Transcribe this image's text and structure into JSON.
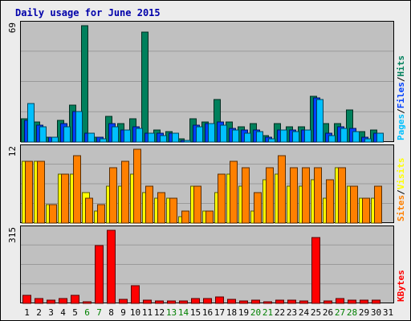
{
  "title": "Daily usage for June 2015",
  "colors": {
    "page_bg": "#ececec",
    "plot_bg": "#c0c0c0",
    "title": "#0000aa",
    "hits": "#00805c",
    "files": "#0040ff",
    "pages": "#00c0ff",
    "visits": "#ffff00",
    "sites": "#ff8000",
    "kbytes": "#ff0000",
    "weekend_label": "#008000",
    "weekday_label": "#000000"
  },
  "chart_data": [
    {
      "type": "bar",
      "panel": "hits-files-pages",
      "y_max_label": "69",
      "ylim": [
        0,
        69
      ],
      "grid": true,
      "legend": {
        "position": "right",
        "entries": [
          {
            "text": "Pages",
            "color": "#00c0ff"
          },
          {
            "text": "Files",
            "color": "#0040ff"
          },
          {
            "text": "Hits",
            "color": "#00805c"
          }
        ],
        "separator": "/"
      },
      "categories": [
        "1",
        "2",
        "3",
        "4",
        "5",
        "6",
        "7",
        "8",
        "9",
        "10",
        "11",
        "12",
        "13",
        "14",
        "15",
        "16",
        "17",
        "18",
        "19",
        "20",
        "21",
        "22",
        "23",
        "24",
        "25",
        "26",
        "27",
        "28",
        "29",
        "30"
      ],
      "series": [
        {
          "name": "Hits",
          "values": [
            14,
            12,
            3,
            13,
            22,
            69,
            3,
            15,
            11,
            14,
            65,
            7,
            6,
            2,
            14,
            12,
            25,
            12,
            9,
            11,
            4,
            11,
            9,
            9,
            27,
            11,
            11,
            19,
            6,
            7
          ]
        },
        {
          "name": "Files",
          "values": [
            13,
            10,
            3,
            11,
            18,
            5,
            3,
            11,
            7,
            9,
            5,
            5,
            5,
            1,
            10,
            11,
            12,
            8,
            7,
            7,
            3,
            7,
            7,
            7,
            26,
            5,
            9,
            8,
            3,
            5
          ]
        },
        {
          "name": "Pages",
          "values": [
            23,
            9,
            3,
            9,
            18,
            5,
            2,
            9,
            7,
            8,
            5,
            4,
            5,
            1,
            9,
            11,
            10,
            7,
            5,
            6,
            2,
            7,
            6,
            7,
            25,
            4,
            8,
            6,
            2,
            5
          ]
        }
      ]
    },
    {
      "type": "bar",
      "panel": "visits-sites",
      "y_max_label": "12",
      "ylim": [
        0,
        12
      ],
      "grid": true,
      "legend": {
        "position": "right",
        "entries": [
          {
            "text": "Sites",
            "color": "#ff8000"
          },
          {
            "text": "Visits",
            "color": "#ffff00"
          }
        ],
        "separator": "/"
      },
      "categories": [
        "1",
        "2",
        "3",
        "4",
        "5",
        "6",
        "7",
        "8",
        "9",
        "10",
        "11",
        "12",
        "13",
        "14",
        "15",
        "16",
        "17",
        "18",
        "19",
        "20",
        "21",
        "22",
        "23",
        "24",
        "25",
        "26",
        "27",
        "28",
        "29",
        "30"
      ],
      "series": [
        {
          "name": "Visits",
          "values": [
            10,
            10,
            3,
            8,
            8,
            5,
            2,
            6,
            6,
            8,
            5,
            4,
            4,
            1,
            6,
            2,
            5,
            8,
            6,
            2,
            7,
            8,
            6,
            6,
            7,
            4,
            9,
            6,
            4,
            4
          ]
        },
        {
          "name": "Sites",
          "values": [
            10,
            10,
            3,
            8,
            11,
            4,
            3,
            9,
            10,
            12,
            6,
            5,
            4,
            2,
            6,
            2,
            8,
            10,
            9,
            5,
            9,
            11,
            9,
            9,
            9,
            7,
            9,
            6,
            4,
            6
          ]
        }
      ]
    },
    {
      "type": "bar",
      "panel": "kbytes",
      "y_max_label": "315",
      "ylim": [
        0,
        315
      ],
      "grid": true,
      "legend": {
        "position": "right",
        "entries": [
          {
            "text": "KBytes",
            "color": "#ff0000"
          }
        ]
      },
      "categories": [
        "1",
        "2",
        "3",
        "4",
        "5",
        "6",
        "7",
        "8",
        "9",
        "10",
        "11",
        "12",
        "13",
        "14",
        "15",
        "16",
        "17",
        "18",
        "19",
        "20",
        "21",
        "22",
        "23",
        "24",
        "25",
        "26",
        "27",
        "28",
        "29",
        "30"
      ],
      "series": [
        {
          "name": "KBytes",
          "values": [
            35,
            22,
            15,
            20,
            35,
            8,
            250,
            315,
            18,
            75,
            14,
            12,
            12,
            10,
            20,
            20,
            28,
            18,
            12,
            15,
            8,
            15,
            15,
            12,
            285,
            12,
            20,
            15,
            15,
            15
          ]
        }
      ]
    }
  ],
  "x_axis": {
    "labels": [
      "1",
      "2",
      "3",
      "4",
      "5",
      "6",
      "7",
      "8",
      "9",
      "10",
      "11",
      "12",
      "13",
      "14",
      "15",
      "16",
      "17",
      "18",
      "19",
      "20",
      "21",
      "22",
      "23",
      "24",
      "25",
      "26",
      "27",
      "28",
      "29",
      "30",
      "31"
    ],
    "weekend_days": [
      "6",
      "7",
      "13",
      "14",
      "20",
      "21",
      "27",
      "28"
    ]
  }
}
